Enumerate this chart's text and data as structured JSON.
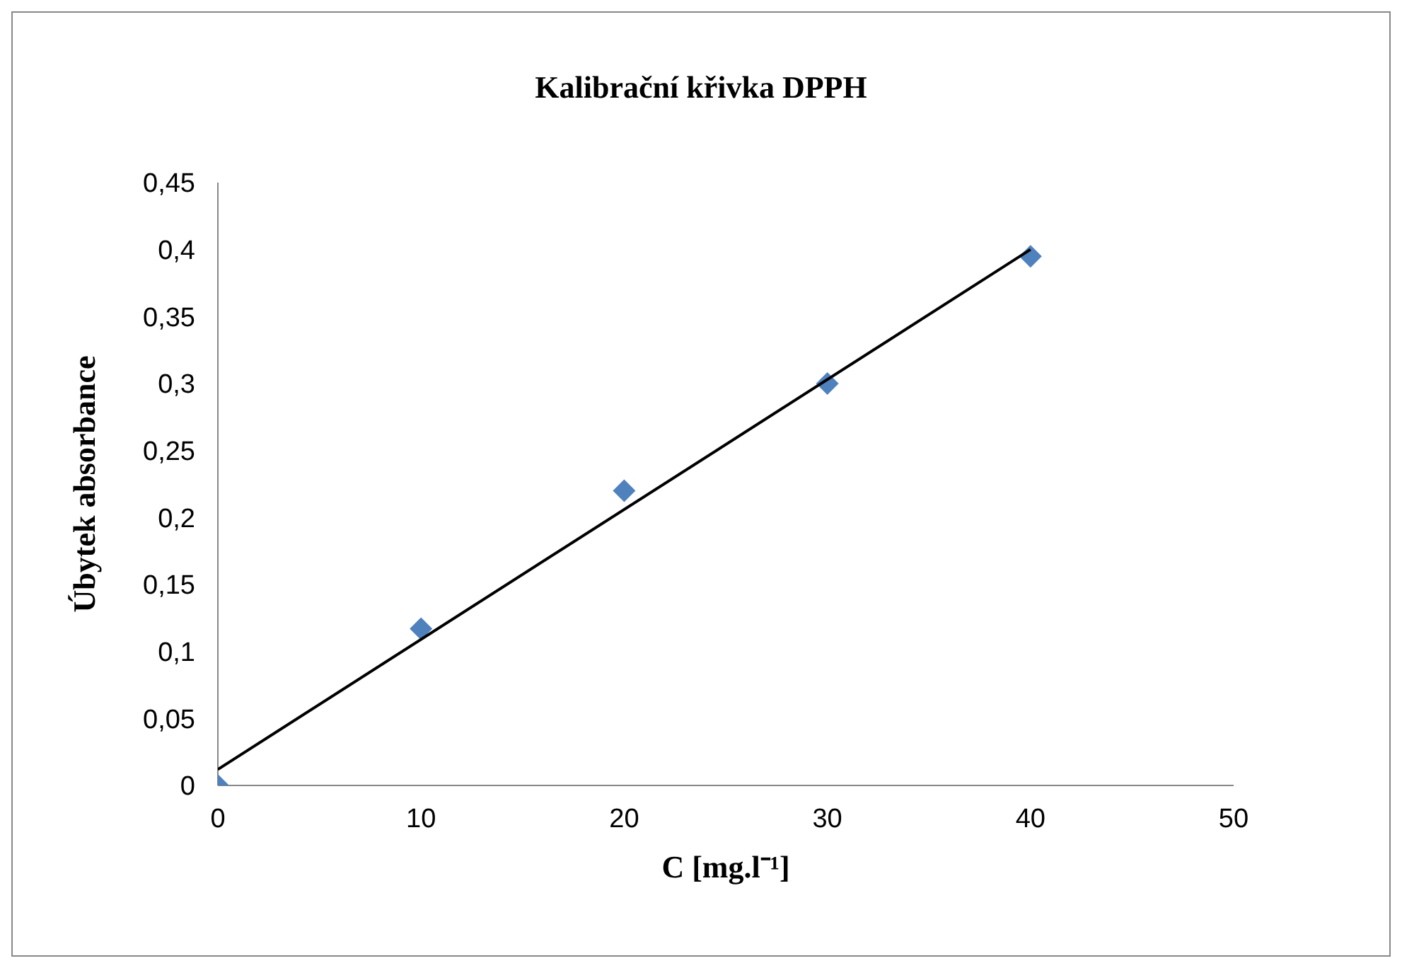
{
  "chart_data": {
    "type": "scatter",
    "title": "Kalibrační křivka DPPH",
    "xlabel": "C [mg.l⁻¹]",
    "ylabel": "Úbytek absorbance",
    "series": [
      {
        "color": "#4f81bd",
        "marker": "diamond",
        "x": [
          0,
          10,
          20,
          30,
          40
        ],
        "values": [
          0,
          0.117,
          0.22,
          0.3,
          0.395
        ]
      },
      {
        "type": "line",
        "color": "#000000",
        "marker": "none",
        "x": [
          0,
          40
        ],
        "values": [
          0.012,
          0.4
        ]
      }
    ],
    "xlim": [
      0,
      50
    ],
    "xticks": [
      0,
      10,
      20,
      30,
      40,
      50
    ],
    "ylim": [
      0,
      0.45
    ],
    "yticks": [
      0,
      {
        "value": 0.05,
        "label": "0,05"
      },
      {
        "value": 0.1,
        "label": "0,1"
      },
      {
        "value": 0.15,
        "label": "0,15"
      },
      {
        "value": 0.2,
        "label": "0,2"
      },
      {
        "value": 0.25,
        "label": "0,25"
      },
      {
        "value": 0.3,
        "label": "0,3"
      },
      {
        "value": 0.35,
        "label": "0,35"
      },
      {
        "value": 0.4,
        "label": "0,4"
      },
      {
        "value": 0.45,
        "label": "0,45"
      }
    ],
    "grid": false,
    "legend": false
  }
}
